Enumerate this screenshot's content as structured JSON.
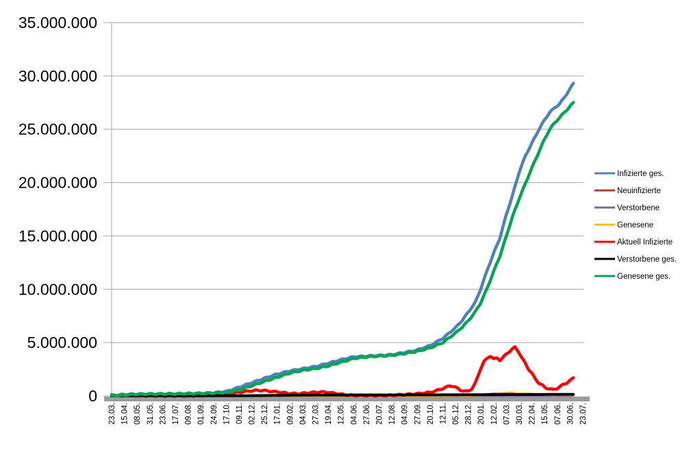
{
  "chart_data": {
    "type": "line",
    "title": "",
    "unit": "millions",
    "background": "#FFFFFF",
    "grid": true,
    "gridline_color": "#A6A6A6",
    "axis_bar_color": "#9C9C9C",
    "y_axis": {
      "min": 0,
      "max": 35000000,
      "tick_step": 5000000,
      "tick_labels": [
        "35.000.000",
        "30.000.000",
        "25.000.000",
        "20.000.000",
        "15.000.000",
        "10.000.000",
        "5.000.000",
        "0"
      ]
    },
    "x_axis": {
      "tick_labels": [
        "23.03.",
        "15.04.",
        "08.05.",
        "31.05.",
        "23.06.",
        "17.07.",
        "09.08.",
        "01.09.",
        "24.09.",
        "17.10.",
        "09.11.",
        "02.12.",
        "25.12.",
        "17.01.",
        "09.02.",
        "04.03.",
        "27.03.",
        "19.04.",
        "12.05.",
        "04.06.",
        "27.06.",
        "20.07.",
        "12.08.",
        "04.09.",
        "27.09.",
        "20.10.",
        "12.11.",
        "05.12.",
        "28.12.",
        "20.01.",
        "12.02.",
        "07.03.",
        "30.03.",
        "22.04.",
        "15.05.",
        "07.06.",
        "30.06.",
        "23.07."
      ]
    },
    "legend": {
      "position": "right",
      "entries": [
        "Infizierte ges.",
        "Neuinfizierte",
        "Verstorbene",
        "Genesene",
        "Aktuell Infizierte",
        "Verstorbene ges.",
        "Genesene ges."
      ]
    },
    "series": [
      {
        "name": "Infizierte ges.",
        "color": "#4F81BD",
        "width": 4.5,
        "wiggle": 0.8,
        "points": [
          [
            0,
            0.03
          ],
          [
            0.028,
            0.14
          ],
          [
            0.054,
            0.17
          ],
          [
            0.081,
            0.18
          ],
          [
            0.108,
            0.19
          ],
          [
            0.135,
            0.2
          ],
          [
            0.163,
            0.22
          ],
          [
            0.189,
            0.25
          ],
          [
            0.217,
            0.29
          ],
          [
            0.244,
            0.42
          ],
          [
            0.27,
            0.8
          ],
          [
            0.298,
            1.25
          ],
          [
            0.324,
            1.65
          ],
          [
            0.352,
            2.05
          ],
          [
            0.379,
            2.35
          ],
          [
            0.406,
            2.55
          ],
          [
            0.433,
            2.76
          ],
          [
            0.459,
            3.05
          ],
          [
            0.487,
            3.4
          ],
          [
            0.513,
            3.66
          ],
          [
            0.541,
            3.73
          ],
          [
            0.568,
            3.79
          ],
          [
            0.595,
            3.87
          ],
          [
            0.622,
            4.07
          ],
          [
            0.648,
            4.3
          ],
          [
            0.676,
            4.72
          ],
          [
            0.703,
            5.4
          ],
          [
            0.73,
            6.4
          ],
          [
            0.744,
            7.1
          ],
          [
            0.757,
            7.85
          ],
          [
            0.772,
            8.8
          ],
          [
            0.783,
            10.0
          ],
          [
            0.798,
            11.9
          ],
          [
            0.811,
            13.4
          ],
          [
            0.824,
            14.8
          ],
          [
            0.837,
            16.9
          ],
          [
            0.85,
            18.7
          ],
          [
            0.865,
            21.0
          ],
          [
            0.878,
            22.5
          ],
          [
            0.892,
            23.7
          ],
          [
            0.907,
            25.0
          ],
          [
            0.919,
            25.9
          ],
          [
            0.93,
            26.6
          ],
          [
            0.94,
            27.0
          ],
          [
            0.951,
            27.4
          ],
          [
            0.961,
            28.0
          ],
          [
            0.97,
            28.6
          ],
          [
            0.98,
            29.3
          ]
        ]
      },
      {
        "name": "Neuinfizierte",
        "color": "#A5423A",
        "width": 3,
        "wiggle": 0,
        "points": [
          [
            0,
            0.004
          ],
          [
            0.108,
            0.008
          ],
          [
            0.217,
            0.012
          ],
          [
            0.27,
            0.02
          ],
          [
            0.298,
            0.025
          ],
          [
            0.352,
            0.015
          ],
          [
            0.433,
            0.02
          ],
          [
            0.487,
            0.01
          ],
          [
            0.568,
            0.003
          ],
          [
            0.622,
            0.01
          ],
          [
            0.676,
            0.015
          ],
          [
            0.703,
            0.04
          ],
          [
            0.73,
            0.06
          ],
          [
            0.757,
            0.045
          ],
          [
            0.783,
            0.1
          ],
          [
            0.798,
            0.17
          ],
          [
            0.811,
            0.2
          ],
          [
            0.824,
            0.22
          ],
          [
            0.837,
            0.25
          ],
          [
            0.85,
            0.27
          ],
          [
            0.865,
            0.22
          ],
          [
            0.878,
            0.16
          ],
          [
            0.892,
            0.13
          ],
          [
            0.907,
            0.09
          ],
          [
            0.919,
            0.06
          ],
          [
            0.93,
            0.05
          ],
          [
            0.94,
            0.06
          ],
          [
            0.951,
            0.08
          ],
          [
            0.961,
            0.1
          ],
          [
            0.97,
            0.11
          ],
          [
            0.98,
            0.12
          ]
        ]
      },
      {
        "name": "Verstorbene",
        "color": "#8064A2",
        "width": 2.5,
        "wiggle": 0,
        "points": [
          [
            0,
            0.0005
          ],
          [
            0.3,
            0.001
          ],
          [
            0.98,
            0.001
          ]
        ]
      },
      {
        "name": "Genesene",
        "color": "#FFC000",
        "width": 3,
        "wiggle": 0,
        "points": [
          [
            0,
            0.002
          ],
          [
            0.108,
            0.006
          ],
          [
            0.217,
            0.01
          ],
          [
            0.298,
            0.02
          ],
          [
            0.352,
            0.02
          ],
          [
            0.433,
            0.018
          ],
          [
            0.487,
            0.012
          ],
          [
            0.568,
            0.004
          ],
          [
            0.648,
            0.008
          ],
          [
            0.703,
            0.025
          ],
          [
            0.73,
            0.045
          ],
          [
            0.757,
            0.04
          ],
          [
            0.783,
            0.08
          ],
          [
            0.811,
            0.15
          ],
          [
            0.837,
            0.2
          ],
          [
            0.85,
            0.22
          ],
          [
            0.865,
            0.23
          ],
          [
            0.878,
            0.21
          ],
          [
            0.892,
            0.18
          ],
          [
            0.907,
            0.15
          ],
          [
            0.919,
            0.12
          ],
          [
            0.93,
            0.09
          ],
          [
            0.94,
            0.08
          ],
          [
            0.951,
            0.1
          ],
          [
            0.961,
            0.09
          ],
          [
            0.97,
            0.08
          ],
          [
            0.98,
            0.07
          ]
        ]
      },
      {
        "name": "Aktuell Infizierte",
        "color": "#FF0000",
        "width": 4.5,
        "wiggle": 0.9,
        "points": [
          [
            0,
            0.05
          ],
          [
            0.015,
            0.07
          ],
          [
            0.028,
            0.06
          ],
          [
            0.054,
            0.03
          ],
          [
            0.108,
            0.015
          ],
          [
            0.163,
            0.015
          ],
          [
            0.189,
            0.04
          ],
          [
            0.217,
            0.09
          ],
          [
            0.244,
            0.17
          ],
          [
            0.27,
            0.33
          ],
          [
            0.285,
            0.42
          ],
          [
            0.298,
            0.48
          ],
          [
            0.31,
            0.52
          ],
          [
            0.324,
            0.5
          ],
          [
            0.34,
            0.42
          ],
          [
            0.352,
            0.37
          ],
          [
            0.368,
            0.28
          ],
          [
            0.379,
            0.23
          ],
          [
            0.394,
            0.21
          ],
          [
            0.406,
            0.24
          ],
          [
            0.42,
            0.3
          ],
          [
            0.433,
            0.34
          ],
          [
            0.445,
            0.37
          ],
          [
            0.459,
            0.33
          ],
          [
            0.473,
            0.25
          ],
          [
            0.487,
            0.15
          ],
          [
            0.5,
            0.08
          ],
          [
            0.513,
            0.05
          ],
          [
            0.541,
            0.04
          ],
          [
            0.568,
            0.04
          ],
          [
            0.595,
            0.06
          ],
          [
            0.622,
            0.12
          ],
          [
            0.648,
            0.2
          ],
          [
            0.676,
            0.33
          ],
          [
            0.69,
            0.5
          ],
          [
            0.703,
            0.7
          ],
          [
            0.712,
            0.85
          ],
          [
            0.718,
            0.95
          ],
          [
            0.725,
            0.9
          ],
          [
            0.73,
            0.8
          ],
          [
            0.74,
            0.55
          ],
          [
            0.75,
            0.42
          ],
          [
            0.757,
            0.45
          ],
          [
            0.765,
            0.7
          ],
          [
            0.772,
            1.2
          ],
          [
            0.783,
            2.55
          ],
          [
            0.79,
            3.2
          ],
          [
            0.798,
            3.55
          ],
          [
            0.804,
            3.75
          ],
          [
            0.811,
            3.45
          ],
          [
            0.818,
            3.55
          ],
          [
            0.824,
            3.35
          ],
          [
            0.83,
            3.55
          ],
          [
            0.837,
            3.9
          ],
          [
            0.845,
            4.2
          ],
          [
            0.852,
            4.45
          ],
          [
            0.856,
            4.55
          ],
          [
            0.863,
            4.2
          ],
          [
            0.87,
            3.6
          ],
          [
            0.878,
            3.05
          ],
          [
            0.885,
            2.5
          ],
          [
            0.892,
            2.1
          ],
          [
            0.9,
            1.55
          ],
          [
            0.907,
            1.2
          ],
          [
            0.915,
            0.95
          ],
          [
            0.919,
            0.8
          ],
          [
            0.93,
            0.65
          ],
          [
            0.937,
            0.58
          ],
          [
            0.945,
            0.7
          ],
          [
            0.951,
            0.85
          ],
          [
            0.958,
            1.05
          ],
          [
            0.965,
            1.2
          ],
          [
            0.97,
            1.35
          ],
          [
            0.975,
            1.5
          ],
          [
            0.98,
            1.68
          ]
        ]
      },
      {
        "name": "Verstorbene ges.",
        "color": "#000000",
        "width": 4,
        "wiggle": 0,
        "points": [
          [
            0,
            0.0
          ],
          [
            0.108,
            0.008
          ],
          [
            0.163,
            0.009
          ],
          [
            0.217,
            0.01
          ],
          [
            0.244,
            0.012
          ],
          [
            0.27,
            0.016
          ],
          [
            0.298,
            0.025
          ],
          [
            0.324,
            0.035
          ],
          [
            0.352,
            0.048
          ],
          [
            0.379,
            0.062
          ],
          [
            0.406,
            0.071
          ],
          [
            0.433,
            0.076
          ],
          [
            0.459,
            0.081
          ],
          [
            0.487,
            0.085
          ],
          [
            0.513,
            0.089
          ],
          [
            0.568,
            0.092
          ],
          [
            0.622,
            0.093
          ],
          [
            0.648,
            0.095
          ],
          [
            0.676,
            0.097
          ],
          [
            0.703,
            0.1
          ],
          [
            0.73,
            0.104
          ],
          [
            0.757,
            0.111
          ],
          [
            0.783,
            0.117
          ],
          [
            0.811,
            0.121
          ],
          [
            0.837,
            0.126
          ],
          [
            0.865,
            0.131
          ],
          [
            0.892,
            0.134
          ],
          [
            0.919,
            0.138
          ],
          [
            0.951,
            0.141
          ],
          [
            0.98,
            0.143
          ]
        ]
      },
      {
        "name": "Genesene ges.",
        "color": "#00A650",
        "width": 4.5,
        "wiggle": 0.8,
        "points": [
          [
            0,
            0.01
          ],
          [
            0.028,
            0.08
          ],
          [
            0.054,
            0.15
          ],
          [
            0.081,
            0.17
          ],
          [
            0.108,
            0.18
          ],
          [
            0.135,
            0.19
          ],
          [
            0.163,
            0.21
          ],
          [
            0.189,
            0.23
          ],
          [
            0.217,
            0.26
          ],
          [
            0.244,
            0.33
          ],
          [
            0.27,
            0.55
          ],
          [
            0.298,
            0.95
          ],
          [
            0.324,
            1.35
          ],
          [
            0.352,
            1.75
          ],
          [
            0.379,
            2.15
          ],
          [
            0.406,
            2.4
          ],
          [
            0.433,
            2.56
          ],
          [
            0.459,
            2.8
          ],
          [
            0.487,
            3.15
          ],
          [
            0.513,
            3.5
          ],
          [
            0.541,
            3.65
          ],
          [
            0.568,
            3.73
          ],
          [
            0.595,
            3.8
          ],
          [
            0.622,
            3.97
          ],
          [
            0.648,
            4.17
          ],
          [
            0.676,
            4.5
          ],
          [
            0.703,
            5.0
          ],
          [
            0.73,
            5.9
          ],
          [
            0.744,
            6.45
          ],
          [
            0.757,
            7.05
          ],
          [
            0.772,
            7.9
          ],
          [
            0.783,
            8.7
          ],
          [
            0.798,
            10.2
          ],
          [
            0.811,
            11.7
          ],
          [
            0.824,
            13.1
          ],
          [
            0.837,
            14.9
          ],
          [
            0.85,
            16.7
          ],
          [
            0.865,
            18.5
          ],
          [
            0.878,
            19.9
          ],
          [
            0.892,
            21.4
          ],
          [
            0.907,
            22.9
          ],
          [
            0.919,
            24.1
          ],
          [
            0.93,
            25.0
          ],
          [
            0.94,
            25.6
          ],
          [
            0.951,
            26.1
          ],
          [
            0.961,
            26.6
          ],
          [
            0.97,
            27.0
          ],
          [
            0.98,
            27.5
          ]
        ]
      }
    ]
  }
}
